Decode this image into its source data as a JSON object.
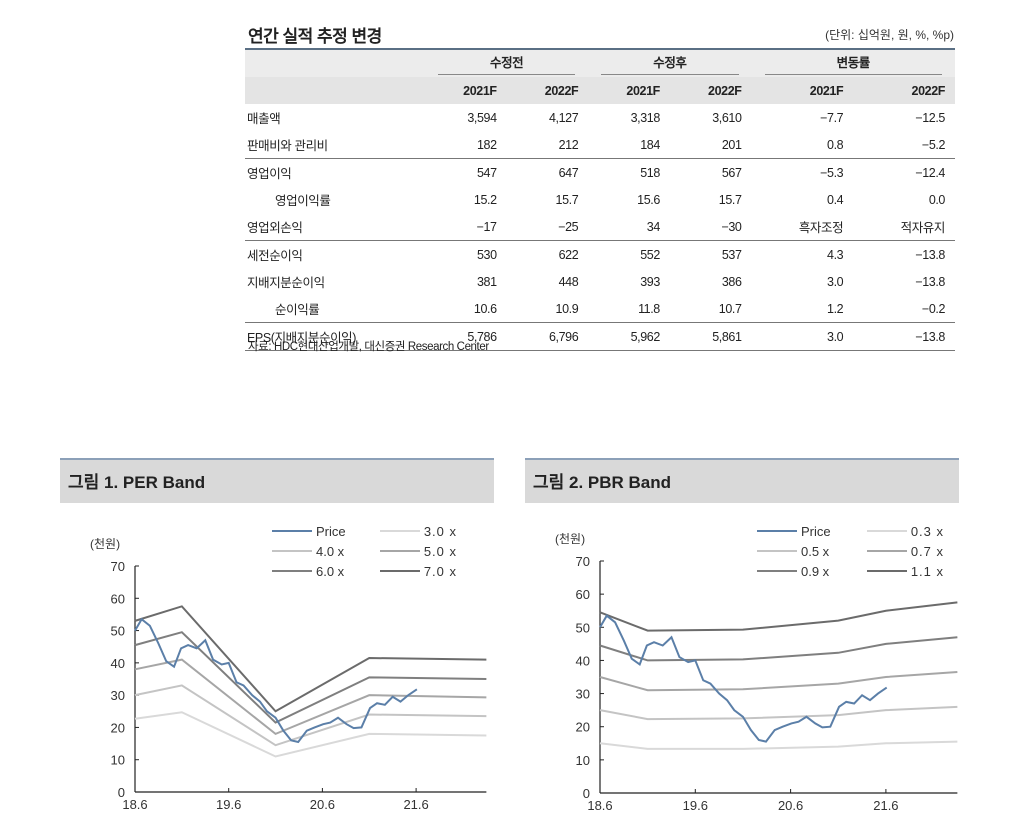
{
  "table": {
    "title": "연간 실적 추정 변경",
    "unit": "(단위: 십억원, 원, %, %p)",
    "groups": [
      "수정전",
      "수정후",
      "변동률"
    ],
    "years": [
      "2021F",
      "2022F",
      "2021F",
      "2022F",
      "2021F",
      "2022F"
    ],
    "rows": [
      {
        "label": "매출액",
        "values": [
          "3,594",
          "4,127",
          "3,318",
          "3,610",
          "−7.7",
          "−12.5"
        ]
      },
      {
        "label": "판매비와 관리비",
        "values": [
          "182",
          "212",
          "184",
          "201",
          "0.8",
          "−5.2"
        ]
      },
      {
        "label": "영업이익",
        "values": [
          "547",
          "647",
          "518",
          "567",
          "−5.3",
          "−12.4"
        ]
      },
      {
        "label": "영업이익률",
        "values": [
          "15.2",
          "15.7",
          "15.6",
          "15.7",
          "0.4",
          "0.0"
        ]
      },
      {
        "label": "영업외손익",
        "values": [
          "−17",
          "−25",
          "34",
          "−30",
          "흑자조정",
          "적자유지"
        ]
      },
      {
        "label": "세전순이익",
        "values": [
          "530",
          "622",
          "552",
          "537",
          "4.3",
          "−13.8"
        ]
      },
      {
        "label": "지배지분순이익",
        "values": [
          "381",
          "448",
          "393",
          "386",
          "3.0",
          "−13.8"
        ]
      },
      {
        "label": "순이익률",
        "values": [
          "10.6",
          "10.9",
          "11.8",
          "10.7",
          "1.2",
          "−0.2"
        ]
      },
      {
        "label": "EPS(지배지분순이익)",
        "values": [
          "5,786",
          "6,796",
          "5,962",
          "5,861",
          "3.0",
          "−13.8"
        ]
      }
    ],
    "source": "자료: HDC현대산업개발, 대신증권 Research Center"
  },
  "figures": [
    {
      "title": "그림 1.  PER Band"
    },
    {
      "title": "그림 2.  PBR Band"
    }
  ],
  "chart_data": [
    {
      "type": "line",
      "title": "PER Band",
      "ylabel": "(천원)",
      "ylim": [
        0,
        70
      ],
      "yticks": [
        0,
        10,
        20,
        30,
        40,
        50,
        60,
        70
      ],
      "xticks": [
        {
          "label": "18.6",
          "month": 0
        },
        {
          "label": "19.6",
          "month": 12
        },
        {
          "label": "20.6",
          "month": 24
        },
        {
          "label": "21.6",
          "month": 36
        }
      ],
      "xlim_months_from_18.6": [
        0,
        45
      ],
      "legend_position": "top-right",
      "price": {
        "name": "Price",
        "color": "#5b7fa8",
        "x": [
          0,
          0.85,
          1.9,
          3,
          4,
          5,
          5.9,
          6.8,
          7.9,
          9,
          10,
          11.1,
          12,
          13,
          13.9,
          15,
          16,
          16.9,
          18,
          19,
          20,
          20.9,
          22,
          23,
          24.1,
          25,
          26,
          27.1,
          28,
          29,
          30.1,
          31,
          32,
          33,
          34,
          35,
          36.1
        ],
        "y": [
          50,
          53.5,
          51.5,
          46,
          40.5,
          38.8,
          44.5,
          45.5,
          44.5,
          47,
          41,
          39.5,
          40,
          34,
          33,
          30,
          28,
          25,
          23,
          19,
          16,
          15.5,
          19,
          20,
          21,
          21.5,
          23,
          21,
          19.8,
          20,
          26,
          27.5,
          27,
          29.5,
          28,
          30,
          31.8
        ]
      },
      "bands": [
        {
          "name": "3.0 x",
          "color": "#d9d9d9",
          "x": [
            0,
            6,
            18,
            30,
            45
          ],
          "y": [
            22.7,
            24.7,
            11,
            18,
            17.5
          ]
        },
        {
          "name": "4.0 x",
          "color": "#c4c4c4",
          "x": [
            0,
            6,
            18,
            30,
            45
          ],
          "y": [
            30,
            33,
            14.5,
            24,
            23.5
          ]
        },
        {
          "name": "5.0 x",
          "color": "#a6a6a6",
          "x": [
            0,
            6,
            18,
            30,
            45
          ],
          "y": [
            38,
            41,
            18,
            30,
            29.3
          ]
        },
        {
          "name": "6.0 x",
          "color": "#7f7f7f",
          "x": [
            0,
            6,
            18,
            30,
            45
          ],
          "y": [
            45.5,
            49.5,
            21.5,
            35.5,
            35
          ]
        },
        {
          "name": "7.0 x",
          "color": "#6b6b6b",
          "x": [
            0,
            6,
            18,
            30,
            45
          ],
          "y": [
            53,
            57.5,
            25,
            41.5,
            41
          ]
        }
      ]
    },
    {
      "type": "line",
      "title": "PBR Band",
      "ylabel": "(천원)",
      "ylim": [
        0,
        70
      ],
      "yticks": [
        0,
        10,
        20,
        30,
        40,
        50,
        60,
        70
      ],
      "xticks": [
        {
          "label": "18.6",
          "month": 0
        },
        {
          "label": "19.6",
          "month": 12
        },
        {
          "label": "20.6",
          "month": 24
        },
        {
          "label": "21.6",
          "month": 36
        }
      ],
      "xlim_months_from_18.6": [
        0,
        45
      ],
      "legend_position": "top-right",
      "price": {
        "name": "Price",
        "color": "#5b7fa8",
        "x": [
          0,
          0.85,
          1.9,
          3,
          4,
          5,
          5.9,
          6.8,
          7.9,
          9,
          10,
          11.1,
          12,
          13,
          13.9,
          15,
          16,
          16.9,
          18,
          19,
          20,
          20.9,
          22,
          23,
          24.1,
          25,
          26,
          27.1,
          28,
          29,
          30.1,
          31,
          32,
          33,
          34,
          35,
          36.1
        ],
        "y": [
          50,
          53.5,
          51.5,
          46,
          40.5,
          38.8,
          44.5,
          45.5,
          44.5,
          47,
          41,
          39.5,
          40,
          34,
          33,
          30,
          28,
          25,
          23,
          19,
          16,
          15.5,
          19,
          20,
          21,
          21.5,
          23,
          21,
          19.8,
          20,
          26,
          27.5,
          27,
          29.5,
          28,
          30,
          31.8
        ]
      },
      "bands": [
        {
          "name": "0.3 x",
          "color": "#d9d9d9",
          "x": [
            0,
            6,
            18,
            30,
            36,
            45
          ],
          "y": [
            15,
            13.3,
            13.3,
            14,
            15,
            15.5
          ]
        },
        {
          "name": "0.5 x",
          "color": "#c4c4c4",
          "x": [
            0,
            6,
            18,
            30,
            36,
            45
          ],
          "y": [
            25,
            22.3,
            22.5,
            23.5,
            25,
            26
          ]
        },
        {
          "name": "0.7 x",
          "color": "#a6a6a6",
          "x": [
            0,
            6,
            18,
            30,
            36,
            45
          ],
          "y": [
            35,
            31,
            31.3,
            33,
            35,
            36.5
          ]
        },
        {
          "name": "0.9 x",
          "color": "#7f7f7f",
          "x": [
            0,
            6,
            18,
            30,
            36,
            45
          ],
          "y": [
            44.5,
            40,
            40.3,
            42.3,
            45,
            47
          ]
        },
        {
          "name": "1.1 x",
          "color": "#6b6b6b",
          "x": [
            0,
            6,
            18,
            30,
            36,
            45
          ],
          "y": [
            54.5,
            49,
            49.3,
            52,
            55,
            57.5
          ]
        }
      ]
    }
  ]
}
